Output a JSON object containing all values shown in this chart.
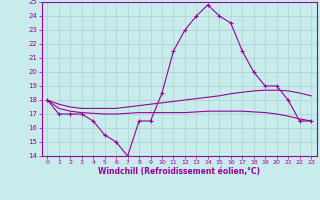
{
  "xlabel": "Windchill (Refroidissement éolien,°C)",
  "background_color": "#c8ecec",
  "grid_color": "#b0d0d0",
  "line_color": "#990099",
  "xlim": [
    -0.5,
    23.5
  ],
  "ylim": [
    14,
    25
  ],
  "x_ticks": [
    0,
    1,
    2,
    3,
    4,
    5,
    6,
    7,
    8,
    9,
    10,
    11,
    12,
    13,
    14,
    15,
    16,
    17,
    18,
    19,
    20,
    21,
    22,
    23
  ],
  "y_ticks": [
    14,
    15,
    16,
    17,
    18,
    19,
    20,
    21,
    22,
    23,
    24,
    25
  ],
  "hours": [
    0,
    1,
    2,
    3,
    4,
    5,
    6,
    7,
    8,
    9,
    10,
    11,
    12,
    13,
    14,
    15,
    16,
    17,
    18,
    19,
    20,
    21,
    22,
    23
  ],
  "windchill": [
    18,
    17,
    17,
    17,
    16.5,
    15.5,
    15,
    14,
    16.5,
    16.5,
    18.5,
    21.5,
    23,
    24,
    24.8,
    24,
    23.5,
    21.5,
    20,
    19,
    19,
    18,
    16.5,
    16.5
  ],
  "smooth1": [
    18,
    17.7,
    17.5,
    17.4,
    17.4,
    17.4,
    17.4,
    17.5,
    17.6,
    17.7,
    17.8,
    17.9,
    18.0,
    18.1,
    18.2,
    18.3,
    18.45,
    18.55,
    18.65,
    18.7,
    18.7,
    18.65,
    18.5,
    18.3
  ],
  "smooth2": [
    18,
    17.4,
    17.2,
    17.1,
    17.05,
    17.0,
    17.0,
    17.05,
    17.1,
    17.1,
    17.1,
    17.1,
    17.1,
    17.15,
    17.2,
    17.2,
    17.2,
    17.2,
    17.15,
    17.1,
    17.0,
    16.85,
    16.65,
    16.5
  ]
}
